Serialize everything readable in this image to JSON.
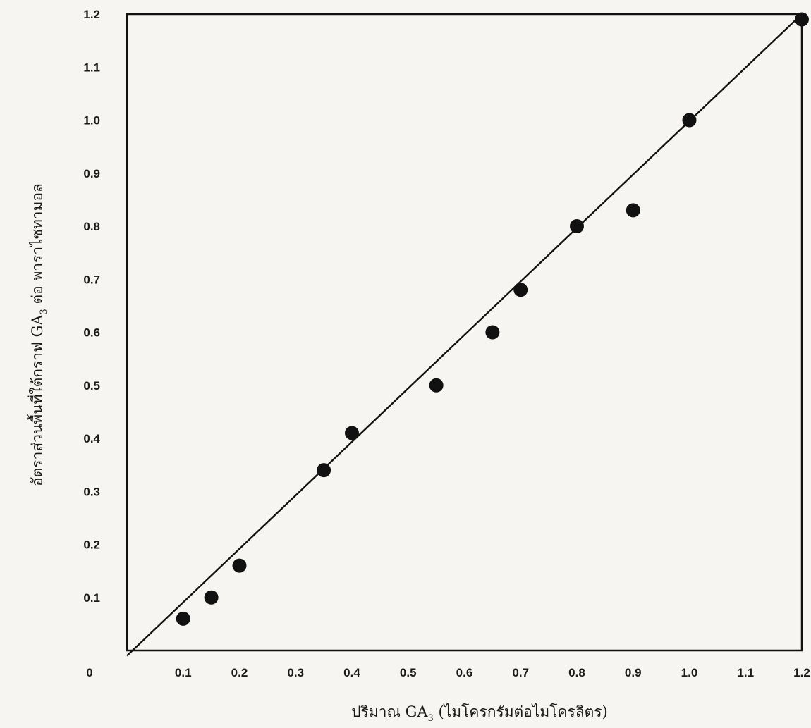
{
  "chart_data": {
    "type": "scatter",
    "title": "",
    "xlim": [
      0,
      1.2
    ],
    "ylim": [
      0,
      1.2
    ],
    "x_ticks": [
      {
        "value": 0.0,
        "label": "0"
      },
      {
        "value": 0.1,
        "label": "0.1"
      },
      {
        "value": 0.2,
        "label": "0.2"
      },
      {
        "value": 0.3,
        "label": "0.3"
      },
      {
        "value": 0.4,
        "label": "0.4"
      },
      {
        "value": 0.5,
        "label": "0.5"
      },
      {
        "value": 0.6,
        "label": "0.6"
      },
      {
        "value": 0.7,
        "label": "0.7"
      },
      {
        "value": 0.8,
        "label": "0.8"
      },
      {
        "value": 0.9,
        "label": "0.9"
      },
      {
        "value": 1.0,
        "label": "1.0"
      },
      {
        "value": 1.1,
        "label": "1.1"
      },
      {
        "value": 1.2,
        "label": "1.2"
      }
    ],
    "y_ticks": [
      {
        "value": 0.1,
        "label": "0.1"
      },
      {
        "value": 0.2,
        "label": "0.2"
      },
      {
        "value": 0.3,
        "label": "0.3"
      },
      {
        "value": 0.4,
        "label": "0.4"
      },
      {
        "value": 0.5,
        "label": "0.5"
      },
      {
        "value": 0.6,
        "label": "0.6"
      },
      {
        "value": 0.7,
        "label": "0.7"
      },
      {
        "value": 0.8,
        "label": "0.8"
      },
      {
        "value": 0.9,
        "label": "0.9"
      },
      {
        "value": 1.0,
        "label": "1.0"
      },
      {
        "value": 1.1,
        "label": "1.1"
      },
      {
        "value": 1.2,
        "label": "1.2"
      }
    ],
    "xlabel": {
      "main": "ปริมาณ GA",
      "sub": "3",
      "suffix": "  (ไมโครกรัมต่อไมโครลิตร)"
    },
    "ylabel": {
      "main": "อัตราส่วนพื้นที่ใต้กราฟ GA",
      "sub": "3",
      "suffix": "  ต่อ พาราไซทามอล"
    },
    "grid": false,
    "points": [
      {
        "x": 0.1,
        "y": 0.06
      },
      {
        "x": 0.15,
        "y": 0.1
      },
      {
        "x": 0.2,
        "y": 0.16
      },
      {
        "x": 0.35,
        "y": 0.34
      },
      {
        "x": 0.4,
        "y": 0.41
      },
      {
        "x": 0.55,
        "y": 0.5
      },
      {
        "x": 0.65,
        "y": 0.6
      },
      {
        "x": 0.7,
        "y": 0.68
      },
      {
        "x": 0.8,
        "y": 0.8
      },
      {
        "x": 0.9,
        "y": 0.83
      },
      {
        "x": 1.0,
        "y": 1.0
      },
      {
        "x": 1.2,
        "y": 1.19
      }
    ],
    "fit_line": {
      "x1": 0.0,
      "y1": -0.01,
      "x2": 1.2,
      "y2": 1.2
    },
    "colors": {
      "ink": "#111111",
      "background": "#f7f5f1"
    }
  }
}
